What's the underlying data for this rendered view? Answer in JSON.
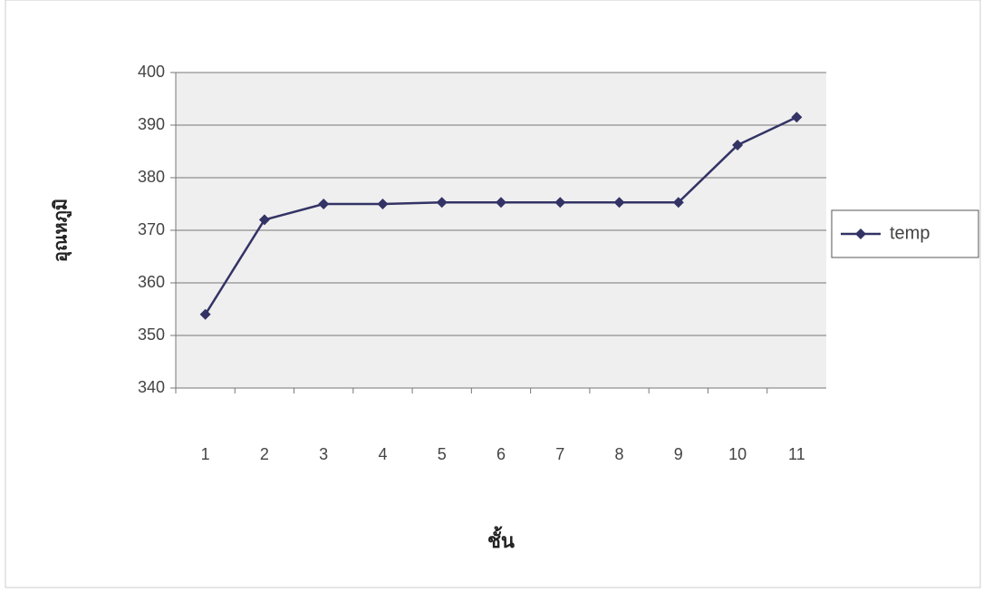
{
  "chart_data": {
    "type": "line",
    "x_label": "ชั้น",
    "y_label": "อุณหภูมิ",
    "categories": [
      "1",
      "2",
      "3",
      "4",
      "5",
      "6",
      "7",
      "8",
      "9",
      "10",
      "11"
    ],
    "series": [
      {
        "name": "temp",
        "color": "#333366",
        "values": [
          354,
          372,
          375,
          375,
          375.3,
          375.3,
          375.3,
          375.3,
          375.3,
          386.2,
          391.5
        ]
      }
    ],
    "ylim": [
      340,
      400
    ],
    "yticks": [
      340,
      350,
      360,
      370,
      380,
      390,
      400
    ],
    "grid": true,
    "legend": "right"
  }
}
